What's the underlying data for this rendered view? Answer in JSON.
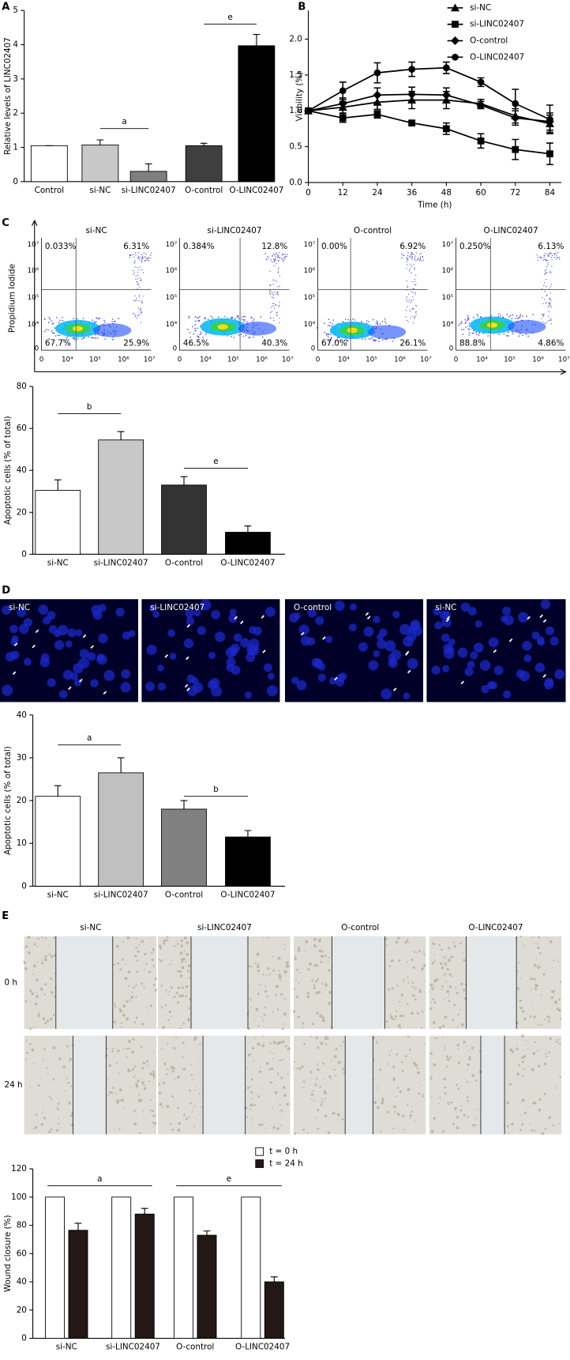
{
  "chart_data": [
    {
      "type": "bar",
      "panel": "A",
      "ylabel": "Relative levels of LINC02407",
      "categories": [
        "Control",
        "si-NC",
        "si-LINC02407",
        "O-control",
        "O-LINC02407"
      ],
      "values": [
        1.05,
        1.07,
        0.3,
        1.05,
        3.97
      ],
      "errors": [
        0,
        0.15,
        0.22,
        0.07,
        0.33
      ],
      "colors": [
        "#ffffff",
        "#c8c8c8",
        "#7f7f7f",
        "#3f3f3f",
        "#000000"
      ],
      "ylim": [
        0,
        5
      ],
      "yticks": [
        0,
        1,
        2,
        3,
        4,
        5
      ],
      "annotations": [
        "a",
        "e"
      ]
    },
    {
      "type": "line",
      "panel": "B",
      "xlabel": "Time (h)",
      "ylabel": "Viability (%)",
      "x": [
        0,
        12,
        24,
        36,
        48,
        60,
        72,
        84
      ],
      "series": [
        {
          "name": "si-NC",
          "color": "#000000",
          "marker": "triangle",
          "values": [
            1,
            1.05,
            1.12,
            1.15,
            1.15,
            1.1,
            0.93,
            0.82
          ],
          "errors": [
            0,
            0.08,
            0.1,
            0.12,
            0.12,
            0.06,
            0.1,
            0.12
          ]
        },
        {
          "name": "si-LINC02407",
          "color": "#000000",
          "marker": "square",
          "values": [
            1,
            0.9,
            0.95,
            0.83,
            0.75,
            0.58,
            0.46,
            0.4
          ],
          "errors": [
            0,
            0.06,
            0.05,
            0.03,
            0.08,
            0.1,
            0.14,
            0.15
          ]
        },
        {
          "name": "O-control",
          "color": "#000000",
          "marker": "diamond",
          "values": [
            1,
            1.1,
            1.22,
            1.23,
            1.22,
            1.08,
            0.9,
            0.85
          ],
          "errors": [
            0,
            0.08,
            0.1,
            0.1,
            0.1,
            0.05,
            0.1,
            0.12
          ]
        },
        {
          "name": "O-LINC02407",
          "color": "#000000",
          "marker": "circle",
          "values": [
            1,
            1.28,
            1.53,
            1.58,
            1.6,
            1.4,
            1.1,
            0.88
          ],
          "errors": [
            0,
            0.12,
            0.14,
            0.1,
            0.08,
            0.06,
            0.2,
            0.2
          ]
        }
      ],
      "xlim": [
        0,
        88
      ],
      "ylim": [
        0,
        2.4
      ],
      "xticks": [
        0,
        12,
        24,
        36,
        48,
        60,
        72,
        84
      ],
      "yticks": [
        {
          "value": 0,
          "label": "0.0"
        },
        0.5,
        {
          "value": 1,
          "label": "1.0"
        },
        1.5,
        {
          "value": 2,
          "label": "2.0"
        }
      ],
      "legend": "upper right"
    },
    {
      "type": "bar",
      "ylabel": "Apoptotic cells (% of total)",
      "categories": [
        "si-NC",
        "si-LINC02407",
        "O-control",
        "O-LINC02407"
      ],
      "values": [
        30.5,
        54.5,
        33,
        10.5
      ],
      "errors": [
        5,
        4,
        4,
        3
      ],
      "colors": [
        "#ffffff",
        "#c8c8c8",
        "#333333",
        "#000000"
      ],
      "ylim": [
        0,
        80
      ],
      "yticks": [
        0,
        20,
        40,
        60,
        80
      ],
      "annotations": [
        "b",
        "e"
      ]
    },
    {
      "type": "bar",
      "ylabel": "Apoptotic cells (% of total)",
      "categories": [
        "si-NC",
        "si-LINC02407",
        "O-control",
        "O-LINC02407"
      ],
      "values": [
        21,
        26.5,
        18,
        11.5
      ],
      "errors": [
        2.5,
        3.5,
        2,
        1.5
      ],
      "colors": [
        "#ffffff",
        "#c0c0c0",
        "#808080",
        "#000000"
      ],
      "ylim": [
        0,
        40
      ],
      "yticks": [
        0,
        10,
        20,
        30,
        40
      ],
      "annotations": [
        "a",
        "b"
      ]
    },
    {
      "type": "bar",
      "ylabel": "Wound closure (%)",
      "categories": [
        "si-NC",
        "si-LINC02407",
        "O-control",
        "O-LINC02407"
      ],
      "series": [
        {
          "name": "t = 0 h",
          "color": "#ffffff",
          "values": [
            100,
            100,
            100,
            100
          ]
        },
        {
          "name": "t = 24 h",
          "color": "#231815",
          "values": [
            76.5,
            88,
            73,
            40
          ],
          "errors": [
            5,
            4,
            3,
            3.5
          ]
        }
      ],
      "ylim": [
        0,
        120
      ],
      "yticks": [
        0,
        20,
        40,
        60,
        80,
        100,
        120
      ],
      "annotations": [
        "a",
        "e"
      ],
      "legend": "top"
    }
  ],
  "flow_cytometry": {
    "panel": "C",
    "ylabel": "Propidium Iodide",
    "plots": [
      {
        "title": "si-NC",
        "quadrants": [
          "0.033%",
          "6.31%",
          "67.7%",
          "25.9%"
        ]
      },
      {
        "title": "si-LINC02407",
        "quadrants": [
          "0.384%",
          "12.8%",
          "46.5%",
          "40.3%"
        ]
      },
      {
        "title": "O-control",
        "quadrants": [
          "0.00%",
          "6.92%",
          "67.0%",
          "26.1%"
        ]
      },
      {
        "title": "O-LINC02407",
        "quadrants": [
          "0.250%",
          "6.13%",
          "88.8%",
          "4.86%"
        ]
      }
    ],
    "yticks": [
      "10⁷",
      "10⁶",
      "10⁵",
      "10⁴",
      "0"
    ],
    "xticks": [
      "0",
      "10⁴",
      "10⁵",
      "10⁶",
      "10⁷"
    ]
  },
  "fluorescence_images": {
    "panel": "D",
    "labels": [
      "si-NC",
      "si-LINC02407",
      "O-control",
      "si-NC"
    ]
  },
  "wound_images": {
    "panel": "E",
    "columns": [
      "si-NC",
      "si-LINC02407",
      "O-control",
      "O-LINC02407"
    ],
    "rows": [
      "0 h",
      "24 h"
    ]
  }
}
